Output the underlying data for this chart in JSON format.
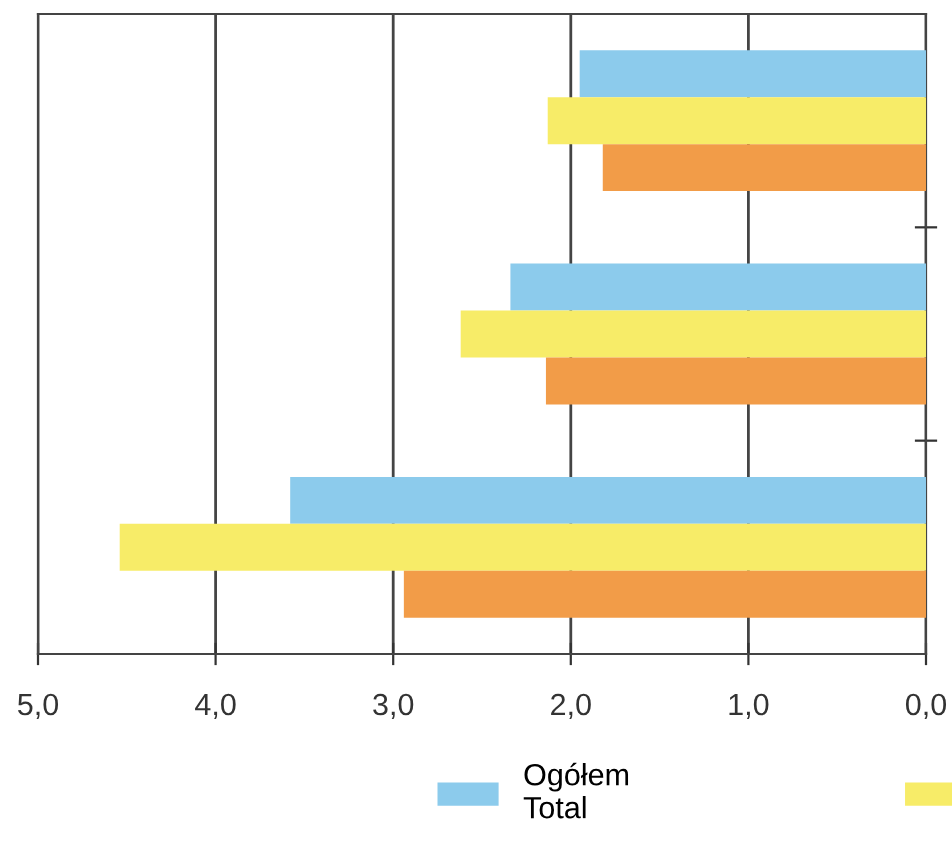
{
  "chart_data": {
    "type": "bar",
    "orientation": "horizontal",
    "categories": [
      null,
      null,
      null
    ],
    "series": [
      {
        "name": "Ogółem\nTotal",
        "color": "#8ccbec",
        "values": [
          1.95,
          2.34,
          3.58
        ]
      },
      {
        "color": "#f7ec68",
        "values": [
          2.13,
          2.62,
          4.54
        ]
      },
      {
        "color": "#f29c48",
        "values": [
          1.82,
          2.14,
          2.94
        ]
      }
    ],
    "xlim": [
      5.0,
      0.0
    ],
    "xticks": [
      {
        "value": 5,
        "label": "5,0"
      },
      {
        "value": 4,
        "label": "4,0"
      },
      {
        "value": 3,
        "label": "3,0"
      },
      {
        "value": 2,
        "label": "2,0"
      },
      {
        "value": 1,
        "label": "1,0"
      },
      {
        "value": 0,
        "label": "0,0"
      }
    ],
    "grid": "x",
    "legend": "bottom",
    "tick_labels": "x"
  }
}
